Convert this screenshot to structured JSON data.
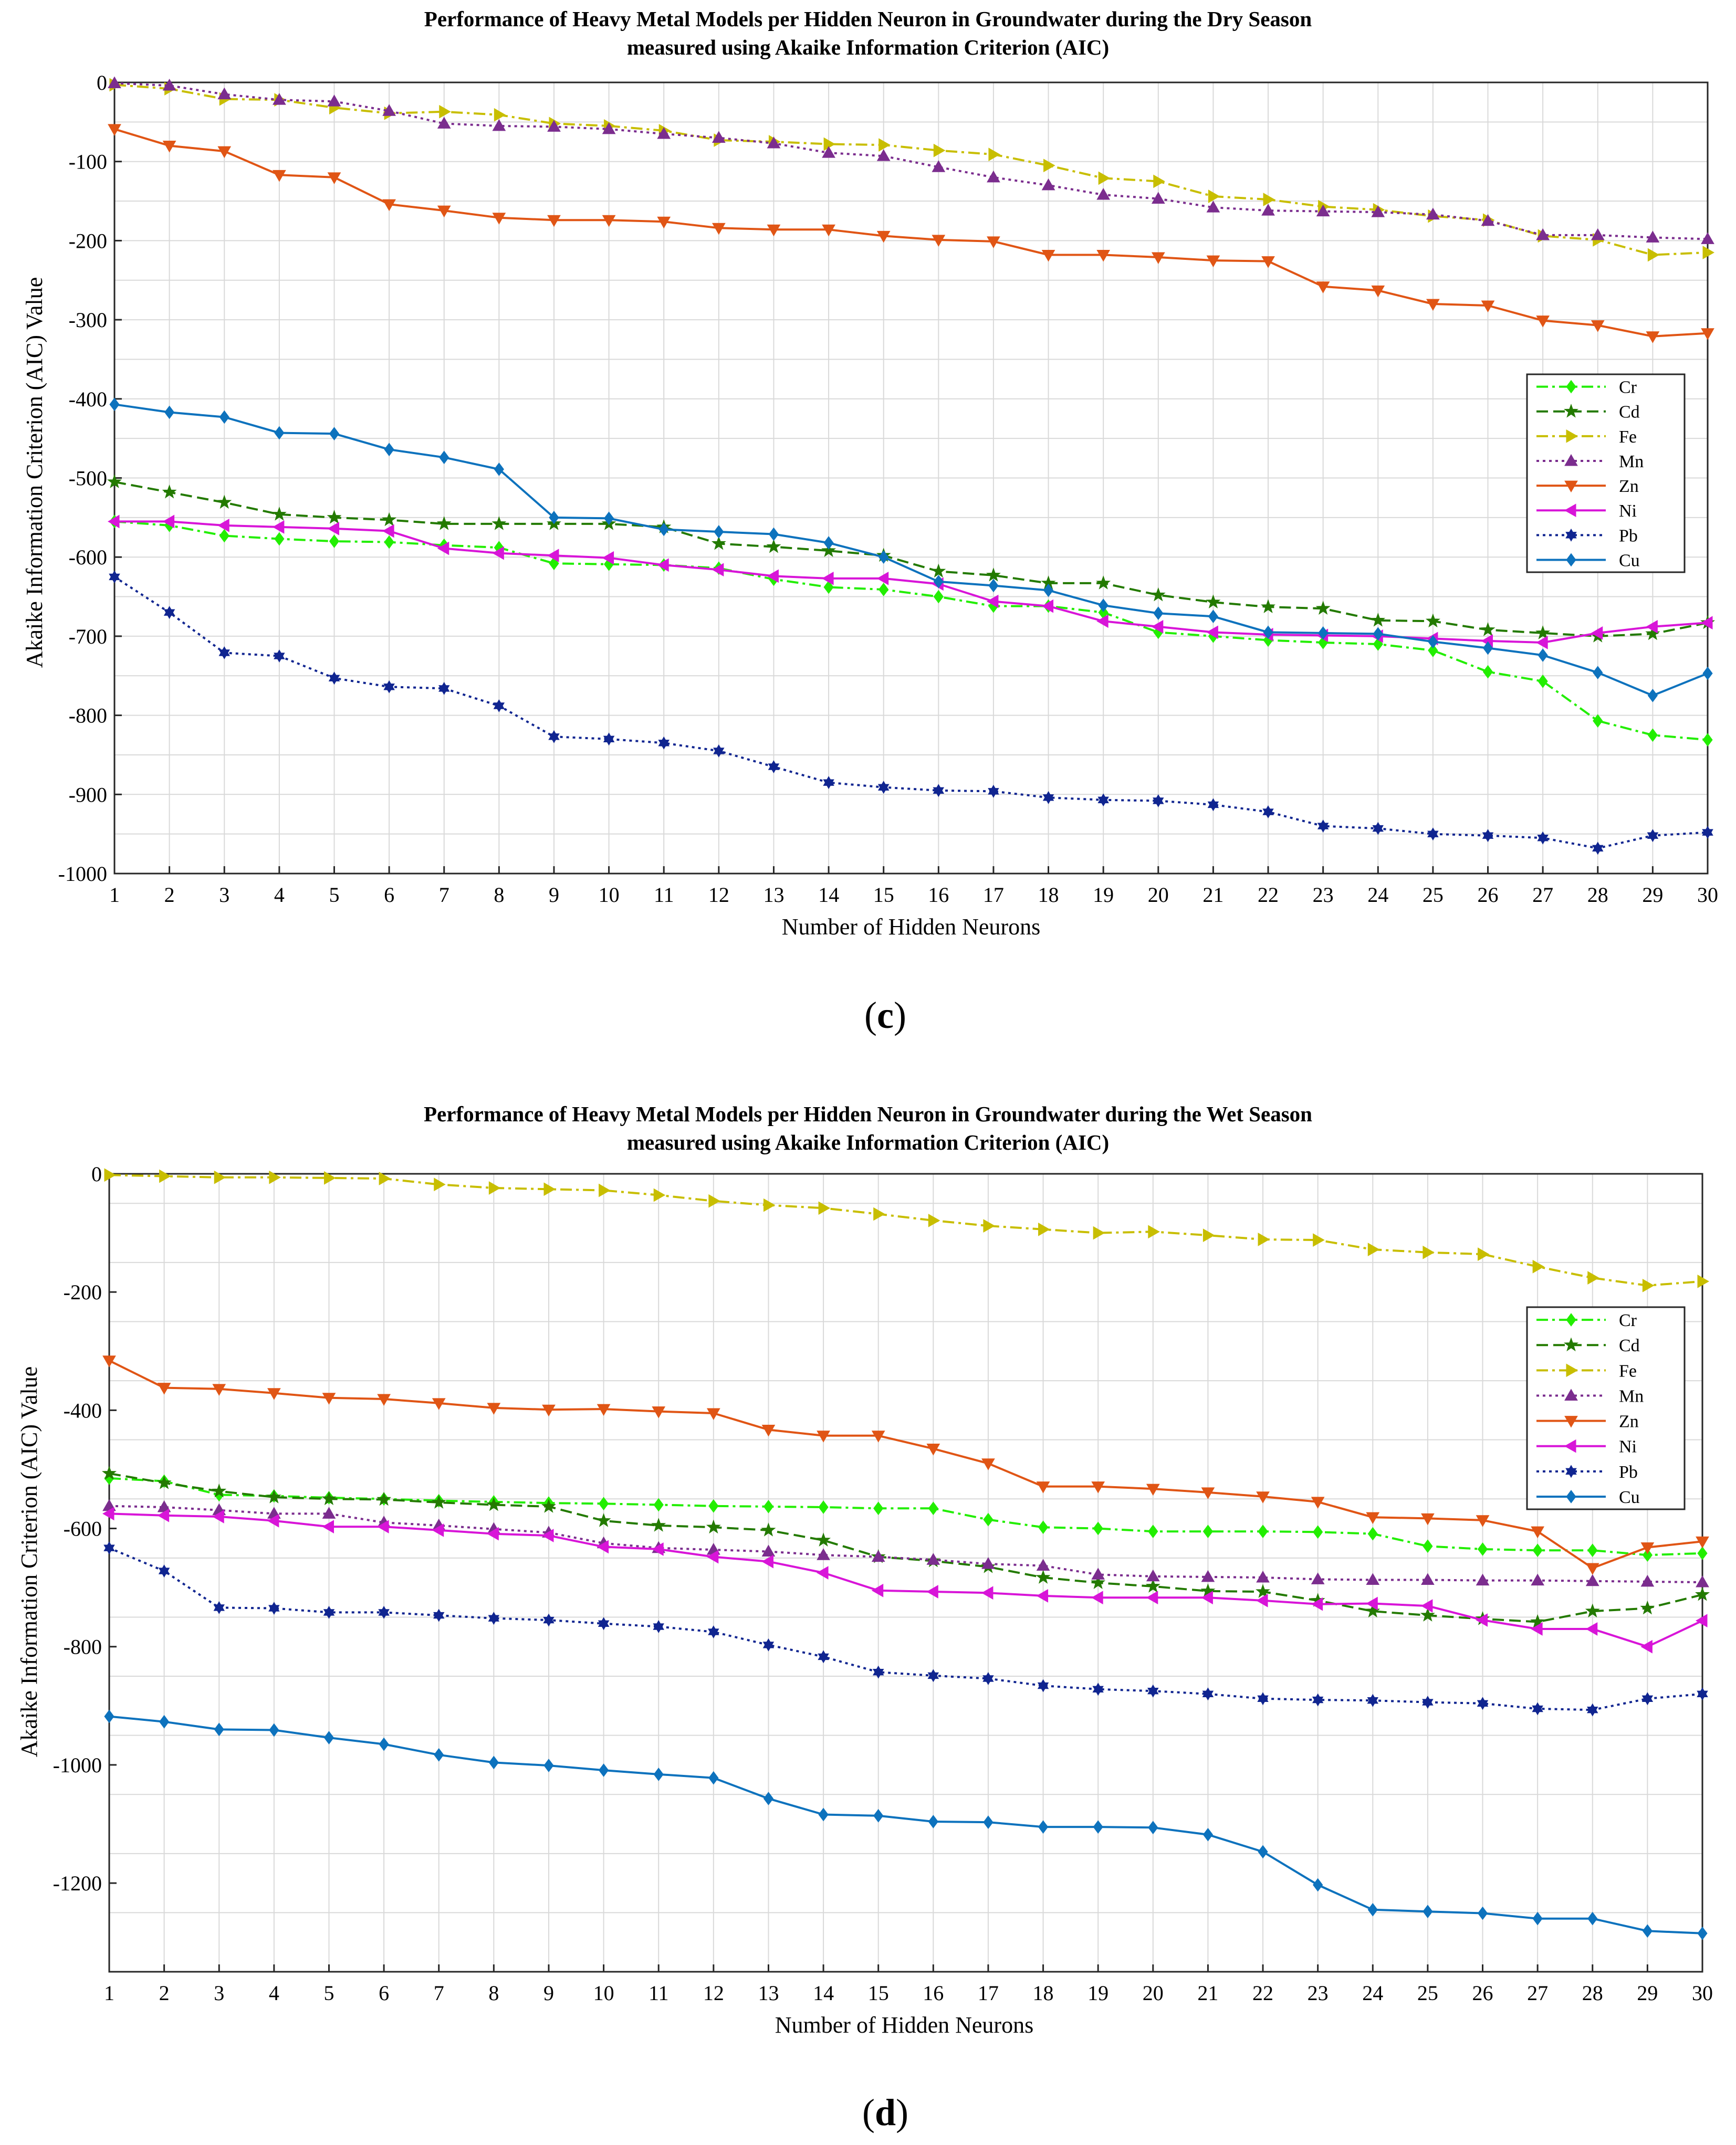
{
  "chart_data": [
    {
      "type": "line",
      "panel_label": "c",
      "title_line1": "Performance of Heavy Metal Models per Hidden Neuron in Groundwater during the Dry Season",
      "title_line2": "measured using Akaike Information Criterion (AIC)",
      "xlabel": "Number of Hidden Neurons",
      "ylabel": "Akaike Information Criterion (AIC) Value",
      "x": [
        1,
        2,
        3,
        4,
        5,
        6,
        7,
        8,
        9,
        10,
        11,
        12,
        13,
        14,
        15,
        16,
        17,
        18,
        19,
        20,
        21,
        22,
        23,
        24,
        25,
        26,
        27,
        28,
        29,
        30
      ],
      "xlim": [
        1,
        30
      ],
      "ylim": [
        -1000,
        0
      ],
      "yticks": [
        0,
        -100,
        -200,
        -300,
        -400,
        -500,
        -600,
        -700,
        -800,
        -900,
        -1000
      ],
      "grid": true,
      "legend_position": "right",
      "series": [
        {
          "name": "Cr",
          "color": "#22ee00",
          "marker": "diamond",
          "dash": "dashdot",
          "values": [
            -555,
            -560,
            -573,
            -577,
            -580,
            -581,
            -585,
            -588,
            -608,
            -609,
            -610,
            -614,
            -628,
            -638,
            -641,
            -650,
            -662,
            -662,
            -670,
            -695,
            -700,
            -705,
            -708,
            -710,
            -718,
            -745,
            -757,
            -807,
            -825,
            -831
          ]
        },
        {
          "name": "Cd",
          "color": "#237a00",
          "marker": "star",
          "dash": "dash",
          "values": [
            -505,
            -518,
            -531,
            -546,
            -550,
            -553,
            -558,
            -558,
            -558,
            -558,
            -562,
            -583,
            -587,
            -592,
            -598,
            -618,
            -623,
            -633,
            -633,
            -648,
            -657,
            -663,
            -665,
            -680,
            -681,
            -692,
            -696,
            -700,
            -697,
            -683
          ]
        },
        {
          "name": "Fe",
          "color": "#c8be00",
          "marker": "triangle-right",
          "dash": "dashdot",
          "values": [
            -3,
            -8,
            -21,
            -22,
            -32,
            -39,
            -37,
            -41,
            -52,
            -55,
            -61,
            -73,
            -75,
            -78,
            -79,
            -86,
            -91,
            -105,
            -121,
            -125,
            -144,
            -148,
            -157,
            -161,
            -169,
            -174,
            -194,
            -199,
            -218,
            -215
          ]
        },
        {
          "name": "Mn",
          "color": "#7b2d8e",
          "marker": "triangle-up",
          "dash": "dot",
          "values": [
            -1,
            -4,
            -15,
            -22,
            -24,
            -36,
            -52,
            -55,
            -56,
            -59,
            -65,
            -70,
            -77,
            -89,
            -93,
            -107,
            -120,
            -130,
            -142,
            -147,
            -158,
            -162,
            -163,
            -164,
            -167,
            -175,
            -193,
            -193,
            -196,
            -198
          ]
        },
        {
          "name": "Zn",
          "color": "#e05515",
          "marker": "triangle-down",
          "dash": "solid",
          "values": [
            -59,
            -80,
            -87,
            -117,
            -120,
            -154,
            -162,
            -171,
            -174,
            -174,
            -176,
            -184,
            -186,
            -186,
            -194,
            -199,
            -201,
            -218,
            -218,
            -221,
            -225,
            -226,
            -258,
            -263,
            -280,
            -282,
            -301,
            -307,
            -321,
            -317
          ]
        },
        {
          "name": "Ni",
          "color": "#d815d8",
          "marker": "triangle-left",
          "dash": "solid",
          "values": [
            -555,
            -555,
            -560,
            -562,
            -564,
            -567,
            -589,
            -595,
            -598,
            -601,
            -610,
            -616,
            -624,
            -627,
            -627,
            -634,
            -656,
            -662,
            -681,
            -688,
            -695,
            -698,
            -699,
            -700,
            -703,
            -706,
            -708,
            -696,
            -688,
            -683
          ]
        },
        {
          "name": "Pb",
          "color": "#102590",
          "marker": "hexagram",
          "dash": "dot",
          "values": [
            -625,
            -670,
            -721,
            -725,
            -753,
            -764,
            -766,
            -788,
            -827,
            -830,
            -835,
            -845,
            -865,
            -885,
            -891,
            -895,
            -896,
            -904,
            -907,
            -908,
            -913,
            -922,
            -940,
            -943,
            -950,
            -952,
            -955,
            -968,
            -952,
            -948
          ]
        },
        {
          "name": "Cu",
          "color": "#0d72bd",
          "marker": "diamond",
          "dash": "solid",
          "values": [
            -407,
            -417,
            -423,
            -443,
            -444,
            -464,
            -474,
            -489,
            -550,
            -551,
            -565,
            -568,
            -571,
            -582,
            -600,
            -631,
            -636,
            -642,
            -661,
            -671,
            -675,
            -695,
            -696,
            -697,
            -707,
            -715,
            -724,
            -746,
            -775,
            -747
          ]
        }
      ]
    },
    {
      "type": "line",
      "panel_label": "d",
      "title_line1": "Performance of Heavy Metal Models per Hidden Neuron in Groundwater during the Wet Season",
      "title_line2": "measured using Akaike Information Criterion (AIC)",
      "xlabel": "Number of Hidden Neurons",
      "ylabel": "Akaike Information Criterion (AIC) Value",
      "x": [
        1,
        2,
        3,
        4,
        5,
        6,
        7,
        8,
        9,
        10,
        11,
        12,
        13,
        14,
        15,
        16,
        17,
        18,
        19,
        20,
        21,
        22,
        23,
        24,
        25,
        26,
        27,
        28,
        29,
        30
      ],
      "xlim": [
        1,
        30
      ],
      "ylim": [
        -1350,
        0
      ],
      "yticks": [
        0,
        -200,
        -400,
        -600,
        -800,
        -1000,
        -1200
      ],
      "grid": true,
      "legend_position": "right",
      "series": [
        {
          "name": "Cr",
          "color": "#22ee00",
          "marker": "diamond",
          "dash": "dashdot",
          "values": [
            -515,
            -520,
            -543,
            -545,
            -548,
            -550,
            -553,
            -555,
            -557,
            -558,
            -560,
            -562,
            -563,
            -564,
            -566,
            -566,
            -585,
            -598,
            -600,
            -605,
            -605,
            -605,
            -606,
            -609,
            -630,
            -635,
            -637,
            -637,
            -645,
            -642
          ]
        },
        {
          "name": "Cd",
          "color": "#237a00",
          "marker": "star",
          "dash": "dash",
          "values": [
            -507,
            -523,
            -537,
            -547,
            -550,
            -551,
            -556,
            -560,
            -563,
            -587,
            -595,
            -598,
            -603,
            -620,
            -648,
            -655,
            -665,
            -683,
            -692,
            -698,
            -706,
            -707,
            -722,
            -740,
            -747,
            -753,
            -758,
            -740,
            -735,
            -712
          ]
        },
        {
          "name": "Fe",
          "color": "#c8be00",
          "marker": "triangle-right",
          "dash": "dashdot",
          "values": [
            -2,
            -4,
            -6,
            -6,
            -7,
            -8,
            -18,
            -24,
            -26,
            -28,
            -36,
            -46,
            -53,
            -58,
            -68,
            -79,
            -88,
            -94,
            -100,
            -98,
            -104,
            -111,
            -112,
            -128,
            -133,
            -136,
            -157,
            -176,
            -189,
            -182
          ]
        },
        {
          "name": "Mn",
          "color": "#7b2d8e",
          "marker": "triangle-up",
          "dash": "dot",
          "values": [
            -562,
            -564,
            -569,
            -575,
            -575,
            -590,
            -595,
            -601,
            -607,
            -625,
            -633,
            -636,
            -639,
            -645,
            -648,
            -653,
            -660,
            -663,
            -678,
            -681,
            -682,
            -683,
            -686,
            -687,
            -687,
            -688,
            -688,
            -689,
            -690,
            -691
          ]
        },
        {
          "name": "Zn",
          "color": "#e05515",
          "marker": "triangle-down",
          "dash": "solid",
          "values": [
            -316,
            -362,
            -364,
            -371,
            -379,
            -381,
            -388,
            -396,
            -399,
            -398,
            -402,
            -405,
            -433,
            -443,
            -443,
            -465,
            -490,
            -529,
            -529,
            -533,
            -539,
            -546,
            -555,
            -581,
            -583,
            -586,
            -605,
            -667,
            -632,
            -622
          ]
        },
        {
          "name": "Ni",
          "color": "#d815d8",
          "marker": "triangle-left",
          "dash": "solid",
          "values": [
            -575,
            -578,
            -580,
            -587,
            -597,
            -597,
            -603,
            -609,
            -612,
            -631,
            -635,
            -648,
            -656,
            -675,
            -705,
            -707,
            -709,
            -714,
            -717,
            -717,
            -717,
            -722,
            -728,
            -727,
            -731,
            -755,
            -770,
            -770,
            -800,
            -756
          ]
        },
        {
          "name": "Pb",
          "color": "#102590",
          "marker": "hexagram",
          "dash": "dot",
          "values": [
            -633,
            -672,
            -734,
            -735,
            -742,
            -742,
            -747,
            -752,
            -755,
            -761,
            -766,
            -775,
            -797,
            -817,
            -843,
            -849,
            -854,
            -866,
            -872,
            -875,
            -880,
            -888,
            -890,
            -891,
            -894,
            -896,
            -905,
            -907,
            -888,
            -880
          ]
        },
        {
          "name": "Cu",
          "color": "#0d72bd",
          "marker": "diamond",
          "dash": "solid",
          "values": [
            -918,
            -927,
            -940,
            -941,
            -954,
            -965,
            -983,
            -996,
            -1001,
            -1009,
            -1016,
            -1022,
            -1057,
            -1084,
            -1086,
            -1096,
            -1097,
            -1105,
            -1105,
            -1106,
            -1118,
            -1147,
            -1203,
            -1245,
            -1248,
            -1251,
            -1260,
            -1260,
            -1281,
            -1285
          ]
        }
      ]
    }
  ]
}
